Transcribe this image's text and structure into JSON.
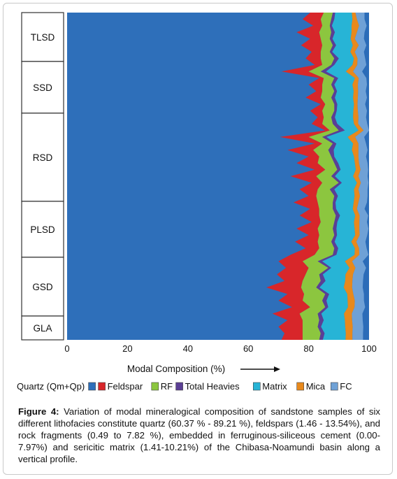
{
  "chart_data": {
    "type": "area",
    "orientation": "horizontal-stacked",
    "xlabel": "Modal Composition (%)",
    "xlim": [
      0,
      100
    ],
    "xticks": [
      0,
      20,
      40,
      60,
      80,
      100
    ],
    "facies": [
      {
        "name": "TLSD",
        "range": [
          0.0,
          0.1493
        ]
      },
      {
        "name": "SSD",
        "range": [
          0.1493,
          0.3073
        ]
      },
      {
        "name": "RSD",
        "range": [
          0.3073,
          0.5767
        ]
      },
      {
        "name": "PLSD",
        "range": [
          0.5767,
          0.7476
        ]
      },
      {
        "name": "GSD",
        "range": [
          0.7476,
          0.9272
        ]
      },
      {
        "name": "GLA",
        "range": [
          0.9272,
          1.0
        ]
      }
    ],
    "depth": [
      0,
      0.02,
      0.04,
      0.06,
      0.08,
      0.1,
      0.12,
      0.14,
      0.16,
      0.18,
      0.2,
      0.22,
      0.24,
      0.26,
      0.28,
      0.3,
      0.32,
      0.34,
      0.36,
      0.38,
      0.4,
      0.42,
      0.44,
      0.46,
      0.48,
      0.5,
      0.52,
      0.54,
      0.56,
      0.58,
      0.6,
      0.62,
      0.64,
      0.66,
      0.68,
      0.7,
      0.72,
      0.74,
      0.76,
      0.78,
      0.8,
      0.82,
      0.84,
      0.86,
      0.88,
      0.9,
      0.92,
      0.94,
      0.96,
      0.98,
      1.0
    ],
    "series": [
      {
        "name": "Quartz (Qm+Qp)",
        "color": "#2e6fba",
        "values": [
          80.5,
          78.0,
          81.5,
          76.0,
          80.5,
          77.5,
          81.0,
          79.0,
          82.0,
          71.0,
          83.5,
          80.0,
          82.5,
          79.0,
          84.0,
          80.5,
          83.0,
          81.0,
          85.5,
          70.5,
          82.0,
          73.0,
          80.0,
          76.0,
          82.0,
          74.0,
          81.0,
          77.0,
          80.0,
          75.0,
          80.5,
          77.0,
          81.0,
          76.0,
          80.0,
          75.5,
          79.0,
          74.0,
          70.0,
          72.5,
          69.5,
          72.0,
          66.0,
          73.0,
          70.0,
          74.5,
          68.0,
          73.0,
          70.0,
          72.0,
          71.0
        ]
      },
      {
        "name": "Feldspar",
        "color": "#d8262a",
        "values": [
          4.5,
          6.0,
          3.0,
          7.5,
          3.5,
          7.0,
          3.0,
          5.0,
          2.5,
          9.0,
          1.5,
          4.5,
          2.0,
          5.0,
          1.5,
          4.0,
          2.0,
          3.5,
          1.5,
          9.5,
          2.5,
          8.5,
          3.5,
          7.0,
          3.5,
          8.5,
          3.5,
          6.0,
          2.5,
          8.0,
          3.0,
          6.5,
          3.0,
          7.0,
          3.5,
          7.5,
          4.5,
          8.0,
          8.0,
          7.5,
          9.5,
          6.0,
          11.5,
          5.5,
          8.0,
          6.0,
          9.0,
          5.0,
          8.0,
          6.0,
          7.0
        ]
      },
      {
        "name": "RF",
        "color": "#8cc63f",
        "values": [
          3.0,
          3.5,
          2.5,
          4.0,
          3.0,
          3.5,
          3.0,
          4.5,
          3.0,
          4.0,
          3.5,
          3.0,
          4.0,
          3.5,
          3.0,
          4.0,
          2.5,
          3.5,
          3.0,
          4.5,
          3.5,
          5.0,
          4.0,
          5.5,
          4.0,
          5.0,
          5.5,
          4.0,
          6.0,
          5.0,
          4.5,
          5.5,
          4.5,
          5.0,
          5.0,
          4.5,
          5.0,
          6.0,
          5.0,
          6.5,
          4.5,
          6.0,
          5.0,
          7.0,
          6.5,
          5.0,
          6.0,
          5.5,
          5.0,
          6.0,
          5.5
        ]
      },
      {
        "name": "Total Heavies",
        "color": "#5b3f95",
        "values": [
          0.8,
          1.0,
          0.7,
          1.2,
          0.9,
          1.1,
          0.8,
          1.5,
          1.0,
          1.8,
          1.3,
          1.0,
          0.9,
          1.2,
          1.0,
          0.8,
          1.2,
          1.5,
          2.0,
          1.4,
          1.2,
          1.8,
          1.0,
          1.3,
          1.1,
          1.2,
          1.0,
          1.5,
          1.2,
          0.9,
          1.1,
          1.4,
          1.0,
          1.2,
          0.9,
          1.1,
          1.3,
          1.2,
          1.5,
          1.0,
          1.2,
          1.6,
          1.1,
          1.3,
          1.4,
          1.0,
          1.2,
          1.5,
          1.1,
          1.3,
          1.2
        ]
      },
      {
        "name": "Matrix",
        "color": "#27b4d6",
        "values": [
          5.5,
          6.0,
          6.5,
          5.5,
          6.0,
          5.5,
          6.0,
          5.0,
          6.0,
          6.5,
          5.5,
          6.0,
          5.5,
          6.0,
          5.5,
          5.5,
          6.0,
          5.5,
          4.5,
          7.0,
          5.5,
          6.0,
          6.5,
          5.5,
          5.0,
          6.0,
          5.0,
          6.5,
          5.5,
          6.0,
          5.5,
          5.0,
          5.5,
          6.0,
          6.0,
          5.5,
          5.5,
          6.0,
          7.5,
          6.0,
          7.5,
          6.5,
          8.0,
          6.0,
          7.0,
          6.5,
          7.5,
          7.0,
          8.0,
          7.0,
          7.5
        ]
      },
      {
        "name": "Mica",
        "color": "#e8891c",
        "values": [
          1.2,
          1.5,
          2.5,
          1.8,
          1.4,
          2.0,
          1.5,
          1.2,
          1.6,
          2.4,
          1.3,
          1.8,
          1.5,
          1.6,
          1.2,
          1.5,
          1.8,
          1.4,
          1.7,
          2.5,
          1.8,
          2.2,
          1.5,
          1.4,
          1.6,
          1.8,
          1.3,
          1.5,
          1.8,
          1.6,
          1.4,
          1.5,
          1.8,
          1.6,
          1.5,
          1.7,
          1.4,
          1.6,
          2.4,
          2.0,
          2.5,
          2.4,
          2.8,
          2.0,
          2.4,
          2.2,
          2.6,
          2.4,
          2.5,
          2.2,
          2.3
        ]
      },
      {
        "name": "FC",
        "color": "#6fa1d6",
        "values": [
          3.0,
          2.5,
          2.5,
          2.5,
          3.0,
          2.5,
          3.0,
          2.5,
          3.0,
          3.0,
          2.5,
          3.0,
          2.5,
          3.0,
          2.5,
          3.0,
          2.5,
          3.0,
          2.0,
          3.0,
          2.5,
          3.0,
          2.5,
          2.8,
          2.5,
          3.0,
          2.5,
          3.0,
          2.5,
          2.8,
          2.5,
          2.8,
          2.5,
          3.0,
          2.5,
          3.0,
          2.5,
          3.0,
          3.5,
          3.5,
          3.5,
          3.5,
          3.5,
          3.5,
          3.0,
          3.5,
          3.5,
          3.5,
          3.5,
          3.5,
          3.5
        ]
      }
    ],
    "legend_position": "bottom"
  },
  "caption": {
    "lead": "Figure 4:",
    "text": " Variation of modal mineralogical composition of sandstone samples of six different lithofacies constitute quartz (60.37 % - 89.21 %), feldspars (1.46 - 13.54%), and rock fragments (0.49 to 7.82 %), embedded in ferruginous-siliceous cement (0.00-7.97%) and sericitic matrix (1.41-10.21%) of the Chibasa-Noamundi basin along a vertical profile."
  }
}
